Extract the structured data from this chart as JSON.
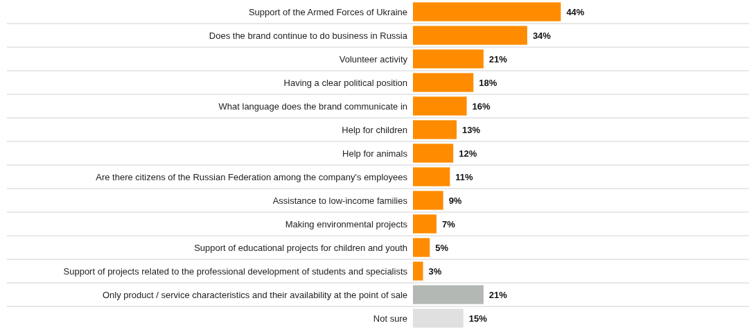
{
  "chart_data": {
    "type": "bar",
    "orientation": "horizontal",
    "categories": [
      "Support of the Armed Forces of Ukraine",
      "Does the brand continue to do business in Russia",
      "Volunteer activity",
      "Having a clear political position",
      "What language does the brand communicate in",
      "Help for children",
      "Help for animals",
      "Are there citizens of the Russian Federation among the company's employees",
      "Assistance to low-income families",
      "Making environmental projects",
      "Support of educational projects for children and youth",
      "Support of projects related to the professional development of students and specialists",
      "Only product / service characteristics and their availability at the point of sale",
      "Not sure"
    ],
    "values": [
      44,
      34,
      21,
      18,
      16,
      13,
      12,
      11,
      9,
      7,
      5,
      3,
      21,
      15
    ],
    "value_labels": [
      "44%",
      "34%",
      "21%",
      "18%",
      "16%",
      "13%",
      "12%",
      "11%",
      "9%",
      "7%",
      "5%",
      "3%",
      "21%",
      "15%"
    ],
    "colors": [
      "#ff8c00",
      "#ff8c00",
      "#ff8c00",
      "#ff8c00",
      "#ff8c00",
      "#ff8c00",
      "#ff8c00",
      "#ff8c00",
      "#ff8c00",
      "#ff8c00",
      "#ff8c00",
      "#ff8c00",
      "#b4b8b4",
      "#e0e0e0"
    ],
    "xlim": [
      0,
      100
    ],
    "tick_labels": "y",
    "grid": "y"
  }
}
